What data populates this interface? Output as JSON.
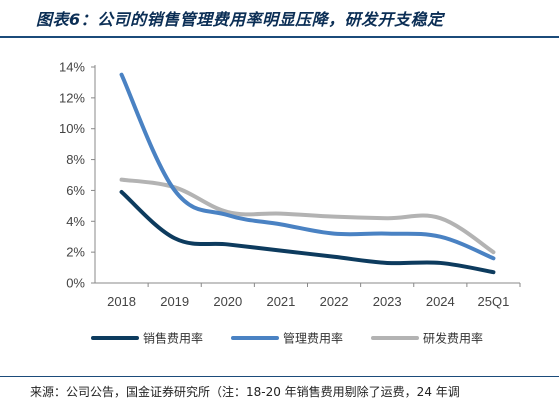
{
  "title": "图表6：公司的销售管理费用率明显压降，研发开支稳定",
  "source": "来源：公司公告，国金证券研究所（注：18-20 年销售费用剔除了运费，24 年调",
  "chart_data": {
    "type": "line",
    "categories": [
      "2018",
      "2019",
      "2020",
      "2021",
      "2022",
      "2023",
      "2024",
      "25Q1"
    ],
    "y_ticks": [
      "0%",
      "2%",
      "4%",
      "6%",
      "8%",
      "10%",
      "12%",
      "14%"
    ],
    "ylim": [
      0,
      14
    ],
    "unit": "%",
    "legend_position": "bottom",
    "series": [
      {
        "name": "销售费用率",
        "color": "#0d3b5e",
        "values": [
          5.9,
          2.9,
          2.5,
          2.1,
          1.7,
          1.3,
          1.3,
          0.7
        ]
      },
      {
        "name": "管理费用率",
        "color": "#4a82c3",
        "values": [
          13.5,
          6.0,
          4.4,
          3.8,
          3.2,
          3.2,
          3.0,
          1.6
        ]
      },
      {
        "name": "研发费用率",
        "color": "#b3b3b3",
        "values": [
          6.7,
          6.2,
          4.6,
          4.5,
          4.3,
          4.2,
          4.2,
          2.0
        ]
      }
    ]
  }
}
